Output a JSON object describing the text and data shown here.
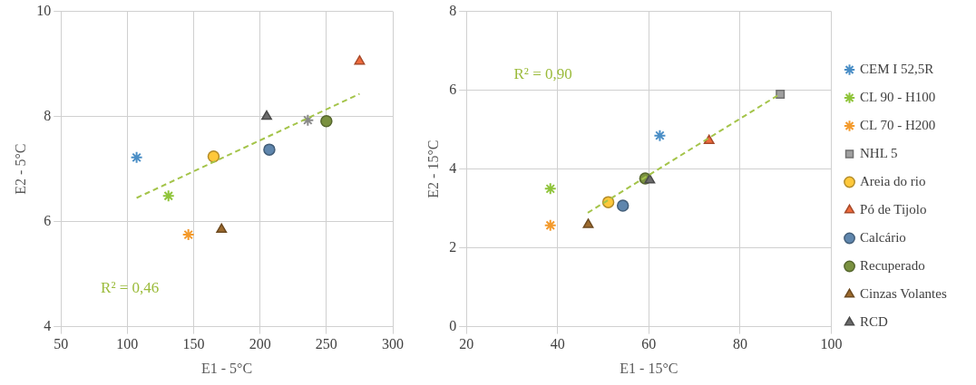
{
  "chart_data": [
    {
      "type": "scatter",
      "xlabel": "E1 - 5°C",
      "ylabel": "E2 - 5°C",
      "xlim": [
        50,
        300
      ],
      "xticks": [
        50,
        100,
        150,
        200,
        250,
        300
      ],
      "ylim": [
        4,
        10
      ],
      "yticks": [
        4,
        6,
        8,
        10
      ],
      "grid": true,
      "legend": false,
      "annotations": [
        "R² = 0,46"
      ],
      "series": [
        {
          "color": "#4a8ec6",
          "marker": "cross",
          "x": [
            107
          ],
          "values": [
            7.22
          ]
        },
        {
          "color": "#8fc43a",
          "marker": "cross",
          "x": [
            131
          ],
          "values": [
            6.49
          ]
        },
        {
          "color": "#f39a2c",
          "marker": "cross",
          "x": [
            146
          ],
          "values": [
            5.75
          ]
        },
        {
          "color": "#8a8a8a",
          "marker": "cross",
          "x": [
            236
          ],
          "values": [
            7.93
          ]
        },
        {
          "color": "#ffc83a",
          "marker": "circle",
          "x": [
            165
          ],
          "values": [
            7.24
          ]
        },
        {
          "color": "#ee6a3c",
          "marker": "triangle",
          "x": [
            275
          ],
          "values": [
            9.05
          ]
        },
        {
          "color": "#5f86ad",
          "marker": "circle",
          "x": [
            207
          ],
          "values": [
            7.37
          ]
        },
        {
          "color": "#7a9140",
          "marker": "circle",
          "x": [
            250
          ],
          "values": [
            7.91
          ]
        },
        {
          "color": "#9c6a2e",
          "marker": "triangle",
          "x": [
            171
          ],
          "values": [
            5.85
          ]
        },
        {
          "color": "#6b6b6b",
          "marker": "triangle",
          "x": [
            205
          ],
          "values": [
            8.0
          ]
        },
        {
          "type": "line",
          "color": "#a4c44a",
          "line_style": "dashed",
          "marker": "none",
          "x": [
            107,
            275
          ],
          "values": [
            6.45,
            8.43
          ]
        }
      ]
    },
    {
      "type": "scatter",
      "xlabel": "E1 - 15°C",
      "ylabel": "E2 - 15°C",
      "xlim": [
        20,
        100
      ],
      "xticks": [
        20,
        40,
        60,
        80,
        100
      ],
      "ylim": [
        0,
        8
      ],
      "yticks": [
        0,
        2,
        4,
        6,
        8
      ],
      "grid": true,
      "legend": "right",
      "annotations": [
        "R² = 0,90"
      ],
      "series": [
        {
          "name": "CEM I 52,5R",
          "color": "#4a8ec6",
          "marker": "cross",
          "x": [
            62.4
          ],
          "values": [
            4.85
          ]
        },
        {
          "name": "CL 90 - H100",
          "color": "#8fc43a",
          "marker": "cross",
          "x": [
            38.4
          ],
          "values": [
            3.5
          ]
        },
        {
          "name": "CL 70 - H200",
          "color": "#f39a2c",
          "marker": "cross",
          "x": [
            38.4
          ],
          "values": [
            2.57
          ]
        },
        {
          "name": "NHL 5",
          "color": "#a0a0a0",
          "marker": "square",
          "x": [
            88.8
          ],
          "values": [
            5.9
          ]
        },
        {
          "name": "Areia do rio",
          "color": "#ffc83a",
          "marker": "circle",
          "x": [
            51.1
          ],
          "values": [
            3.16
          ]
        },
        {
          "name": "Pó de Tijolo",
          "color": "#ee6a3c",
          "marker": "triangle",
          "x": [
            73.2
          ],
          "values": [
            4.72
          ]
        },
        {
          "name": "Calcário",
          "color": "#5f86ad",
          "marker": "circle",
          "x": [
            54.3
          ],
          "values": [
            3.07
          ]
        },
        {
          "name": "Recuperado",
          "color": "#7a9140",
          "marker": "circle",
          "x": [
            59.2
          ],
          "values": [
            3.76
          ]
        },
        {
          "name": "Cinzas Volantes",
          "color": "#9c6a2e",
          "marker": "triangle",
          "x": [
            46.7
          ],
          "values": [
            2.59
          ]
        },
        {
          "name": "RCD",
          "color": "#6b6b6b",
          "marker": "triangle",
          "x": [
            60.2
          ],
          "values": [
            3.72
          ]
        },
        {
          "type": "line",
          "color": "#a4c44a",
          "line_style": "dashed",
          "marker": "none",
          "x": [
            46.6,
            88.7
          ],
          "values": [
            2.89,
            5.9
          ]
        }
      ]
    }
  ]
}
